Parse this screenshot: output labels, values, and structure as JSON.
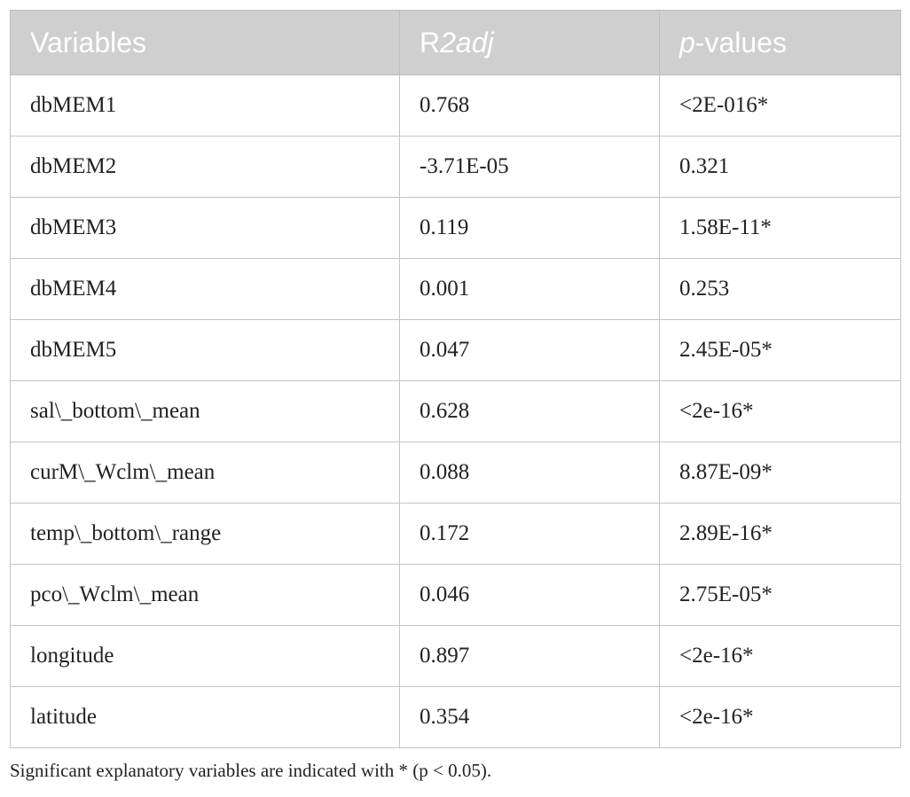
{
  "table": {
    "headers": {
      "variables": "Variables",
      "r2adj_prefix": "R",
      "r2adj_italic": "2adj",
      "pvalues_italic": "p",
      "pvalues_rest": "-values"
    },
    "rows": [
      {
        "variable": "dbMEM1",
        "r2adj": "0.768",
        "p": "<2E-016*"
      },
      {
        "variable": "dbMEM2",
        "r2adj": "-3.71E-05",
        "p": "0.321"
      },
      {
        "variable": "dbMEM3",
        "r2adj": "0.119",
        "p": "1.58E-11*"
      },
      {
        "variable": "dbMEM4",
        "r2adj": "0.001",
        "p": "0.253"
      },
      {
        "variable": "dbMEM5",
        "r2adj": "0.047",
        "p": "2.45E-05*"
      },
      {
        "variable": "sal\\_bottom\\_mean",
        "r2adj": "0.628",
        "p": "<2e-16*"
      },
      {
        "variable": "curM\\_Wclm\\_mean",
        "r2adj": "0.088",
        "p": "8.87E-09*"
      },
      {
        "variable": "temp\\_bottom\\_range",
        "r2adj": "0.172",
        "p": "2.89E-16*"
      },
      {
        "variable": "pco\\_Wclm\\_mean",
        "r2adj": "0.046",
        "p": "2.75E-05*"
      },
      {
        "variable": "longitude",
        "r2adj": "0.897",
        "p": "<2e-16*"
      },
      {
        "variable": "latitude",
        "r2adj": "0.354",
        "p": "<2e-16*"
      }
    ]
  },
  "footnote": "Significant explanatory variables are indicated with * (p < 0.05)."
}
